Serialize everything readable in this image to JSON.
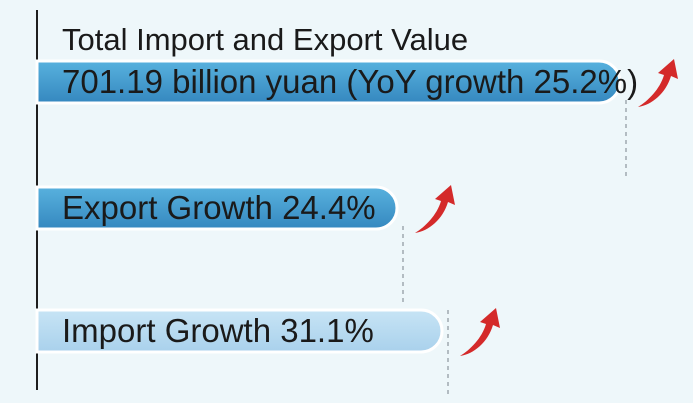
{
  "chart_data": {
    "type": "bar",
    "orientation": "horizontal",
    "title": "Total Import and Export Value",
    "categories": [
      "701.19 billion yuan (YoY growth 25.2%)",
      "Export Growth 24.4%",
      "Import Growth 31.1%"
    ],
    "values": [
      25.2,
      24.4,
      31.1
    ],
    "unit": "%",
    "colors": [
      "#3f9bd0",
      "#3f9bd0",
      "#b5d8ee"
    ],
    "arrow_color": "#d42a2a"
  }
}
